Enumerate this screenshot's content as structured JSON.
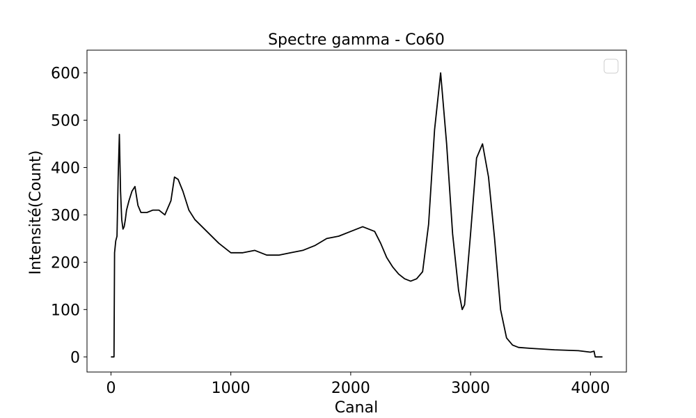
{
  "chart_data": {
    "type": "line",
    "title": "Spectre gamma  - Co60",
    "xlabel": "Canal",
    "ylabel": "Intensité(Count)",
    "xlim": [
      -200,
      4300
    ],
    "ylim": [
      -32,
      648
    ],
    "xticks": [
      0,
      1000,
      2000,
      3000,
      4000
    ],
    "xtick_labels": [
      "0",
      "1000",
      "2000",
      "3000",
      "4000"
    ],
    "yticks": [
      0,
      100,
      200,
      300,
      400,
      500,
      600
    ],
    "ytick_labels": [
      "0",
      "100",
      "200",
      "300",
      "400",
      "500",
      "600"
    ],
    "legend": {
      "position": "top-right",
      "entries": []
    },
    "grid": false,
    "line_color": "#000000",
    "series": [
      {
        "x": [
          0,
          25,
          30,
          40,
          50,
          60,
          70,
          80,
          90,
          100,
          110,
          120,
          130,
          150,
          175,
          200,
          225,
          250,
          300,
          350,
          400,
          450,
          500,
          530,
          560,
          600,
          650,
          700,
          800,
          900,
          1000,
          1100,
          1200,
          1300,
          1400,
          1500,
          1600,
          1700,
          1800,
          1900,
          2000,
          2100,
          2200,
          2250,
          2300,
          2350,
          2400,
          2450,
          2500,
          2550,
          2600,
          2650,
          2700,
          2750,
          2800,
          2850,
          2900,
          2930,
          2950,
          3000,
          3050,
          3100,
          3150,
          3200,
          3250,
          3300,
          3350,
          3400,
          3500,
          3700,
          3900,
          4000,
          4030,
          4040,
          4050,
          4100
        ],
        "y": [
          0,
          0,
          220,
          245,
          255,
          380,
          470,
          350,
          290,
          270,
          275,
          290,
          310,
          330,
          350,
          360,
          320,
          305,
          305,
          310,
          310,
          300,
          330,
          380,
          375,
          350,
          310,
          290,
          265,
          240,
          220,
          220,
          225,
          215,
          215,
          220,
          225,
          235,
          250,
          255,
          265,
          275,
          265,
          240,
          210,
          190,
          175,
          165,
          160,
          165,
          180,
          280,
          480,
          600,
          450,
          260,
          140,
          100,
          110,
          260,
          420,
          450,
          380,
          250,
          100,
          40,
          25,
          20,
          18,
          15,
          13,
          10,
          12,
          0,
          0,
          0
        ]
      }
    ]
  }
}
